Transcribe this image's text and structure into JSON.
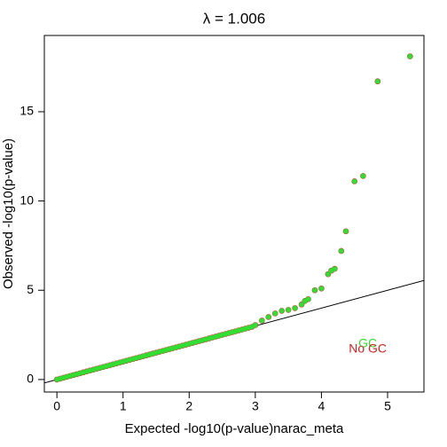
{
  "chart_data": {
    "type": "scatter",
    "title": "λ = 1.006",
    "xlabel": "Expected -log10(p-value)narac_meta",
    "ylabel": "Observed -log10(p-value)",
    "xlim": [
      -0.19,
      5.55
    ],
    "ylim": [
      -0.7,
      19.27
    ],
    "xticks": [
      0,
      1,
      2,
      3,
      4,
      5
    ],
    "yticks": [
      0,
      5,
      10,
      15
    ],
    "diagonal": true,
    "x": [
      0,
      0.05,
      0.1,
      0.15,
      0.2,
      0.25,
      0.3,
      0.35,
      0.4,
      0.45,
      0.5,
      0.55,
      0.6,
      0.65,
      0.7,
      0.75,
      0.8,
      0.85,
      0.9,
      0.95,
      1,
      1.05,
      1.1,
      1.15,
      1.2,
      1.25,
      1.3,
      1.35,
      1.4,
      1.45,
      1.5,
      1.55,
      1.6,
      1.65,
      1.7,
      1.75,
      1.8,
      1.85,
      1.9,
      1.95,
      2,
      2.05,
      2.1,
      2.15,
      2.2,
      2.25,
      2.3,
      2.35,
      2.4,
      2.45,
      2.5,
      2.55,
      2.6,
      2.65,
      2.7,
      2.75,
      2.8,
      2.85,
      2.9,
      2.95,
      3.0,
      3.1,
      3.2,
      3.3,
      3.4,
      3.5,
      3.6,
      3.7,
      3.75,
      3.8,
      3.9,
      4.0,
      4.1,
      4.15,
      4.2,
      4.3,
      4.37,
      4.5,
      4.63,
      4.85,
      5.34
    ],
    "series": [
      {
        "name": "No GC",
        "color": "#cc2222",
        "values": [
          0,
          0.05,
          0.1,
          0.15,
          0.2,
          0.25,
          0.3,
          0.35,
          0.4,
          0.45,
          0.5,
          0.55,
          0.6,
          0.65,
          0.7,
          0.75,
          0.8,
          0.85,
          0.9,
          0.95,
          1,
          1.05,
          1.1,
          1.15,
          1.2,
          1.25,
          1.3,
          1.35,
          1.4,
          1.45,
          1.5,
          1.55,
          1.6,
          1.65,
          1.7,
          1.75,
          1.8,
          1.85,
          1.9,
          1.95,
          2,
          2.05,
          2.1,
          2.15,
          2.2,
          2.25,
          2.3,
          2.35,
          2.4,
          2.45,
          2.5,
          2.55,
          2.6,
          2.65,
          2.7,
          2.75,
          2.8,
          2.85,
          2.9,
          2.95,
          3.05,
          3.3,
          3.5,
          3.7,
          3.85,
          3.9,
          4.0,
          4.2,
          4.4,
          4.5,
          5.0,
          5.1,
          5.9,
          6.1,
          6.2,
          7.2,
          8.3,
          11.1,
          11.4,
          16.7,
          18.1
        ]
      },
      {
        "name": "GC",
        "color": "#33dd33",
        "values": [
          0,
          0.05,
          0.1,
          0.15,
          0.2,
          0.25,
          0.3,
          0.35,
          0.4,
          0.45,
          0.5,
          0.55,
          0.6,
          0.65,
          0.7,
          0.75,
          0.8,
          0.85,
          0.9,
          0.95,
          1,
          1.05,
          1.1,
          1.15,
          1.2,
          1.25,
          1.3,
          1.35,
          1.4,
          1.45,
          1.5,
          1.55,
          1.6,
          1.65,
          1.7,
          1.75,
          1.8,
          1.85,
          1.9,
          1.95,
          2,
          2.05,
          2.1,
          2.15,
          2.2,
          2.25,
          2.3,
          2.35,
          2.4,
          2.45,
          2.5,
          2.55,
          2.6,
          2.65,
          2.7,
          2.75,
          2.8,
          2.85,
          2.9,
          2.95,
          3.05,
          3.3,
          3.5,
          3.7,
          3.85,
          3.9,
          4.0,
          4.2,
          4.4,
          4.5,
          5.0,
          5.1,
          5.9,
          6.1,
          6.2,
          7.2,
          8.3,
          11.1,
          11.4,
          16.7,
          18.1
        ]
      }
    ],
    "annotations": [
      {
        "text": "GC",
        "x": 4.7,
        "y": 2.0,
        "color": "#33dd33"
      },
      {
        "text": "No GC",
        "x": 4.7,
        "y": 1.7,
        "color": "#cc2222"
      }
    ]
  }
}
